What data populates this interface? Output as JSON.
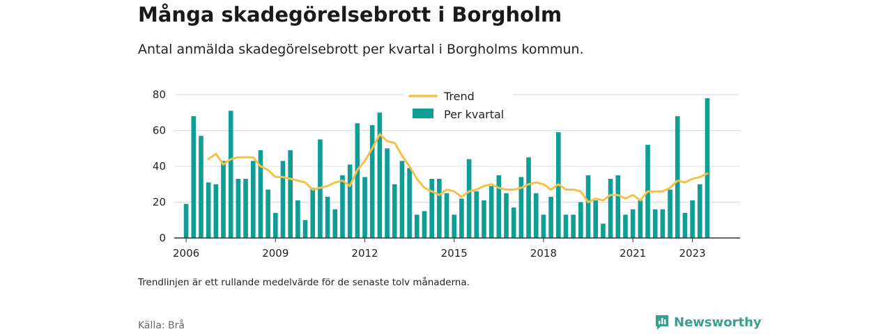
{
  "header": {
    "title": "Många skadegörelsebrott i Borgholm",
    "subtitle": "Antal anmälda skadegörelsebrott per kvartal i Borgholms kommun."
  },
  "footer": {
    "note": "Trendlinjen är ett rullande medelvärde för de senaste tolv månaderna.",
    "source": "Källa: Brå",
    "brand": "Newsworthy"
  },
  "colors": {
    "bars": "#0f9e96",
    "trend": "#f5c04a",
    "grid": "#dddddd",
    "brand": "#3a9e8f"
  },
  "chart_data": {
    "type": "bar",
    "xlim": [
      2005.6,
      2024.6
    ],
    "ylim": [
      0,
      80
    ],
    "yticks": [
      0,
      20,
      40,
      60,
      80
    ],
    "xticks": [
      {
        "value": 2006,
        "label": "2006"
      },
      {
        "value": 2009,
        "label": "2009"
      },
      {
        "value": 2012,
        "label": "2012"
      },
      {
        "value": 2015,
        "label": "2015"
      },
      {
        "value": 2018,
        "label": "2018"
      },
      {
        "value": 2021,
        "label": "2021"
      },
      {
        "value": 2023,
        "label": "2023"
      }
    ],
    "grid": true,
    "legend_position": "top-center",
    "series": [
      {
        "name": "Per kvartal",
        "type": "bar",
        "start_year": 2006,
        "values": [
          19,
          68,
          57,
          31,
          30,
          43,
          71,
          33,
          33,
          43,
          49,
          27,
          14,
          43,
          49,
          21,
          10,
          28,
          55,
          23,
          16,
          35,
          41,
          64,
          34,
          63,
          70,
          50,
          30,
          43,
          39,
          13,
          15,
          33,
          33,
          25,
          13,
          22,
          44,
          26,
          21,
          29,
          35,
          25,
          17,
          34,
          45,
          25,
          13,
          23,
          59,
          13,
          13,
          20,
          35,
          21,
          8,
          33,
          35,
          13,
          16,
          21,
          52,
          16,
          16,
          27,
          68,
          14,
          21,
          30,
          78
        ]
      },
      {
        "name": "Trend",
        "type": "line",
        "start_year": 2006.75,
        "values": [
          44,
          47,
          41,
          44,
          45,
          45,
          45,
          40,
          38,
          34,
          34,
          33,
          32,
          31,
          27,
          28,
          29,
          31,
          32,
          29,
          38,
          43,
          50,
          58,
          54,
          53,
          46,
          40,
          33,
          28,
          26,
          24,
          27,
          26,
          23,
          26,
          27,
          29,
          30,
          28,
          27,
          27,
          28,
          30,
          31,
          30,
          27,
          30,
          27,
          27,
          26,
          20,
          22,
          21,
          24,
          24,
          22,
          24,
          21,
          26,
          26,
          26,
          28,
          32,
          31,
          33,
          34,
          36
        ]
      }
    ]
  }
}
